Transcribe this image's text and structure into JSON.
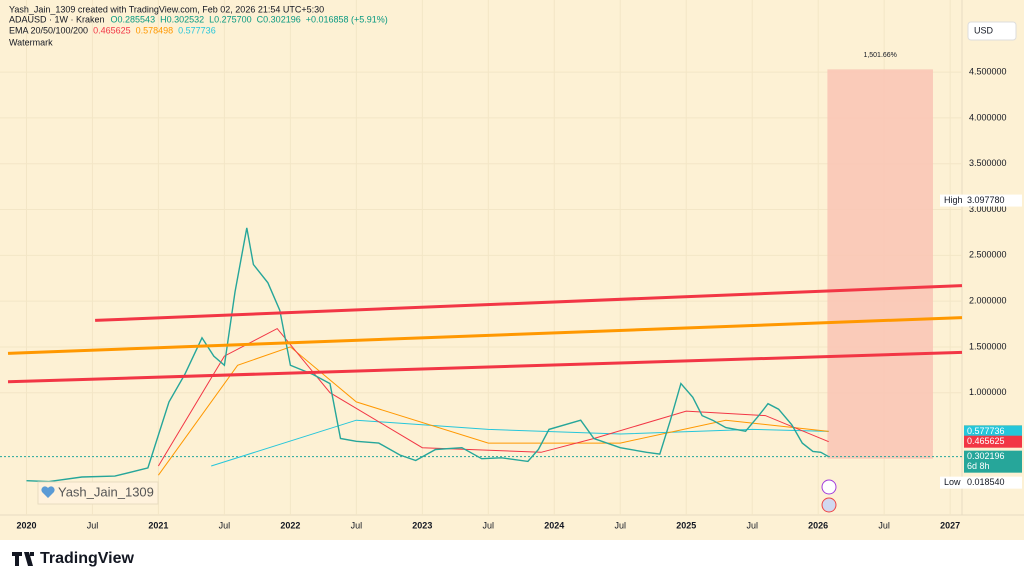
{
  "header": {
    "credit": "Yash_Jain_1309 created with TradingView.com, Feb 02, 2026 21:54 UTC+5:30",
    "symbol": "ADAUSD · 1W · Kraken",
    "ohlc": [
      "O0.285543",
      "H0.302532",
      "L0.275700",
      "C0.302196",
      "+0.016858 (+5.91%)"
    ],
    "ema_title": "EMA 20/50/100/200",
    "ema_values": [
      "0.465625",
      "0.578498",
      "0.577736"
    ],
    "watermark": "Watermark",
    "currency": "USD",
    "signature": "Yash_Jain_1309"
  },
  "footer": {
    "brand": "TradingView"
  },
  "chart_data": {
    "type": "line",
    "xlim": [
      2019.86,
      2027.09
    ],
    "ylim": [
      -0.28,
      5.2
    ],
    "xticks": [
      {
        "value": 2020,
        "label": "2020"
      },
      {
        "value": 2020.5,
        "label": "Jul"
      },
      {
        "value": 2021,
        "label": "2021"
      },
      {
        "value": 2021.5,
        "label": "Jul"
      },
      {
        "value": 2022,
        "label": "2022"
      },
      {
        "value": 2022.5,
        "label": "Jul"
      },
      {
        "value": 2023,
        "label": "2023"
      },
      {
        "value": 2023.5,
        "label": "Jul"
      },
      {
        "value": 2024,
        "label": "2024"
      },
      {
        "value": 2024.5,
        "label": "Jul"
      },
      {
        "value": 2025,
        "label": "2025"
      },
      {
        "value": 2025.5,
        "label": "Jul"
      },
      {
        "value": 2026,
        "label": "2026"
      },
      {
        "value": 2026.5,
        "label": "Jul"
      },
      {
        "value": 2027,
        "label": "2027"
      }
    ],
    "yticks": [
      {
        "value": 1,
        "label": "1.000000"
      },
      {
        "value": 1.5,
        "label": "1.500000"
      },
      {
        "value": 2,
        "label": "2.000000"
      },
      {
        "value": 2.5,
        "label": "2.500000"
      },
      {
        "value": 3,
        "label": "3.000000"
      },
      {
        "value": 3.5,
        "label": "3.500000"
      },
      {
        "value": 4,
        "label": "4.000000"
      },
      {
        "value": 4.5,
        "label": "4.500000"
      }
    ],
    "grid": true,
    "series": [
      {
        "name": "ADAUSD",
        "color": "#26a69a",
        "x": [
          2020.0,
          2020.17,
          2020.42,
          2020.67,
          2020.92,
          2021.08,
          2021.2,
          2021.33,
          2021.42,
          2021.5,
          2021.58,
          2021.67,
          2021.72,
          2021.83,
          2021.92,
          2022.0,
          2022.17,
          2022.3,
          2022.38,
          2022.5,
          2022.67,
          2022.83,
          2022.95,
          2023.1,
          2023.3,
          2023.45,
          2023.6,
          2023.8,
          2023.88,
          2023.96,
          2024.2,
          2024.3,
          2024.5,
          2024.7,
          2024.8,
          2024.88,
          2024.96,
          2025.05,
          2025.12,
          2025.2,
          2025.3,
          2025.45,
          2025.55,
          2025.62,
          2025.7,
          2025.8,
          2025.88,
          2025.96,
          2026.02,
          2026.08
        ],
        "values": [
          0.04,
          0.03,
          0.08,
          0.09,
          0.18,
          0.9,
          1.2,
          1.6,
          1.4,
          1.3,
          2.1,
          2.8,
          2.4,
          2.2,
          1.9,
          1.3,
          1.2,
          1.1,
          0.5,
          0.47,
          0.45,
          0.32,
          0.26,
          0.38,
          0.4,
          0.28,
          0.29,
          0.25,
          0.38,
          0.6,
          0.7,
          0.5,
          0.4,
          0.35,
          0.33,
          0.7,
          1.1,
          0.95,
          0.75,
          0.7,
          0.62,
          0.58,
          0.75,
          0.88,
          0.82,
          0.65,
          0.45,
          0.36,
          0.35,
          0.302196
        ]
      },
      {
        "color": "#f23645",
        "x": [
          2021.0,
          2021.5,
          2021.9,
          2022.3,
          2023.0,
          2023.9,
          2024.3,
          2025.0,
          2025.6,
          2026.08
        ],
        "values": [
          0.2,
          1.4,
          1.7,
          1.0,
          0.4,
          0.35,
          0.5,
          0.8,
          0.75,
          0.465625
        ]
      },
      {
        "color": "#ff9800",
        "x": [
          2021.0,
          2021.6,
          2022.0,
          2022.5,
          2023.5,
          2024.5,
          2025.3,
          2026.08
        ],
        "values": [
          0.1,
          1.3,
          1.5,
          0.9,
          0.45,
          0.45,
          0.7,
          0.578498
        ]
      },
      {
        "color": "#26c6da",
        "x": [
          2021.4,
          2022.5,
          2023.5,
          2024.5,
          2025.5,
          2026.08
        ],
        "values": [
          0.2,
          0.7,
          0.6,
          0.55,
          0.6,
          0.577736
        ]
      }
    ],
    "trendlines": [
      {
        "color": "#f23645",
        "x": [
          2020.52,
          2027.09
        ],
        "values": [
          1.79,
          2.17
        ]
      },
      {
        "color": "#ff9800",
        "x": [
          2019.86,
          2027.09
        ],
        "values": [
          1.43,
          1.82
        ]
      },
      {
        "color": "#f23645",
        "x": [
          2019.86,
          2027.09
        ],
        "values": [
          1.12,
          1.44
        ]
      }
    ],
    "projection": {
      "x": [
        2026.07,
        2026.87
      ],
      "values": [
        0.28,
        4.53
      ],
      "label": "1,501.66%",
      "color": "#f9c4b4"
    },
    "axis_markers": [
      {
        "value": 3.09778,
        "label": "3.097780",
        "caption": "High",
        "color": "#ffffff"
      },
      {
        "value": 0.578498,
        "label": "0.578498",
        "color": "#ff9800"
      },
      {
        "value": 0.577736,
        "label": "0.577736",
        "color": "#26c6da"
      },
      {
        "value": 0.465625,
        "label": "0.465625",
        "color": "#f23645"
      },
      {
        "value": 0.302196,
        "label": "0.302196",
        "caption": "6d 8h",
        "color": "#26a69a"
      },
      {
        "value": 0.01854,
        "label": "0.018540",
        "caption": "Low",
        "color": "#ffffff"
      }
    ]
  }
}
